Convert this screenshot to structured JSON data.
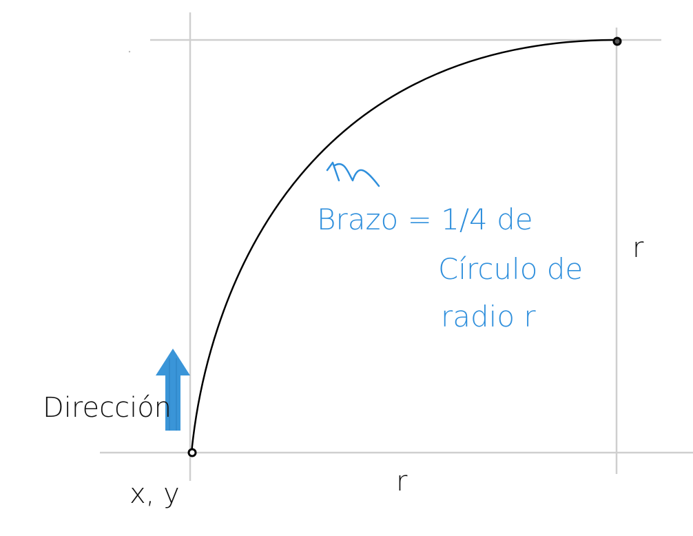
{
  "colors": {
    "background": "#ffffff",
    "grid_line": "#cfcfcf",
    "curve": "#000000",
    "annotation": "#2f8fdc",
    "arrow": "#3a95d8",
    "text": "#111111"
  },
  "annotation": {
    "line1": "Brazo = 1/4 de",
    "line2": "Círculo de",
    "line3": "radio r"
  },
  "labels": {
    "direction": "Dirección",
    "origin": "x, y",
    "radius_bottom": "r",
    "radius_right": "r"
  }
}
